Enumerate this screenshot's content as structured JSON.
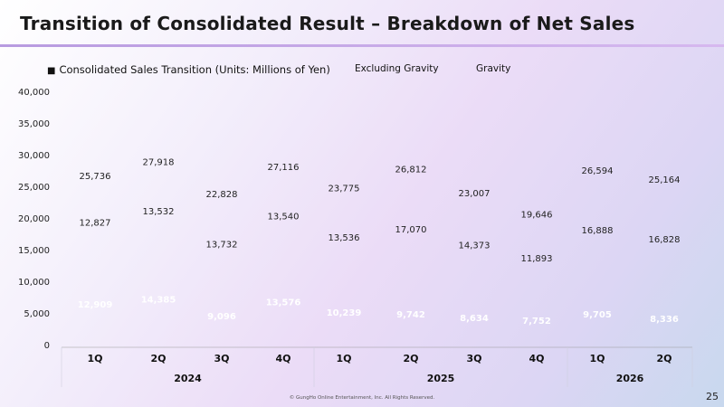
{
  "title": "Transition of Consolidated Result – Breakdown of Net Sales",
  "legend": {
    "main_marker": "■",
    "main": "Consolidated Sales Transition (Units: Millions of Yen)",
    "excluding_gravity": "Excluding Gravity",
    "gravity": "Gravity"
  },
  "footer": "© GungHo Online Entertainment, Inc. All Rights Reserved.",
  "page_number": "25",
  "chart_data": {
    "type": "bar",
    "stacked": true,
    "ylim": [
      0,
      40000
    ],
    "yticks": [
      "0",
      "5,000",
      "10,000",
      "15,000",
      "20,000",
      "25,000",
      "30,000",
      "35,000",
      "40,000"
    ],
    "quarters": [
      "1Q",
      "2Q",
      "3Q",
      "4Q",
      "1Q",
      "2Q",
      "3Q",
      "4Q",
      "1Q",
      "2Q"
    ],
    "years": [
      {
        "label": "2024",
        "start": 0,
        "count": 4
      },
      {
        "label": "2025",
        "start": 4,
        "count": 4
      },
      {
        "label": "2026",
        "start": 8,
        "count": 2
      }
    ],
    "series": [
      {
        "name": "Gravity",
        "values": [
          12909,
          14385,
          9096,
          13576,
          10239,
          9742,
          8634,
          7752,
          9705,
          8336
        ],
        "labels": [
          "12,909",
          "14,385",
          "9,096",
          "13,576",
          "10,239",
          "9,742",
          "8,634",
          "7,752",
          "9,705",
          "8,336"
        ]
      },
      {
        "name": "Excluding Gravity",
        "values": [
          12827,
          13532,
          13732,
          13540,
          13536,
          17070,
          14373,
          11893,
          16888,
          16828
        ],
        "labels": [
          "12,827",
          "13,532",
          "13,732",
          "13,540",
          "13,536",
          "17,070",
          "14,373",
          "11,893",
          "16,888",
          "16,828"
        ]
      }
    ],
    "totals": [
      25736,
      27918,
      22828,
      27116,
      23775,
      26812,
      23007,
      19646,
      26594,
      25164
    ],
    "total_labels": [
      "25,736",
      "27,918",
      "22,828",
      "27,116",
      "23,775",
      "26,812",
      "23,007",
      "19,646",
      "26,594",
      "25,164"
    ],
    "colors": {
      "gravity_label": "#ffffff",
      "excluding_label": "#222222",
      "total_label": "#222222",
      "axis": "#999999"
    },
    "grid": false,
    "legend_position": "top"
  }
}
